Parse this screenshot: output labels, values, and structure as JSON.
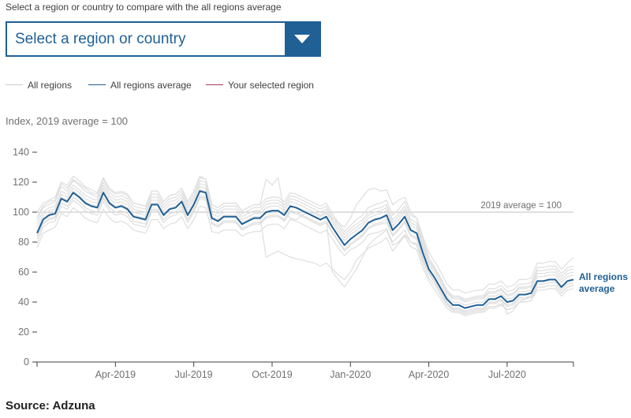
{
  "controls": {
    "prompt": "Select a region or country to compare with the all regions average",
    "select_placeholder": "Select a region or country"
  },
  "legend": {
    "items": [
      {
        "label": "All regions",
        "color": "#cccccc"
      },
      {
        "label": "All regions average",
        "color": "#206095"
      },
      {
        "label": "Your selected region",
        "color": "#a8385d"
      }
    ]
  },
  "chart_data": {
    "type": "line",
    "y_note": "Index, 2019 average = 100",
    "ylim": [
      0,
      140
    ],
    "y_ticks": [
      0,
      20,
      40,
      60,
      80,
      100,
      120,
      140
    ],
    "x_ticks": [
      "Apr-2019",
      "Jul-2019",
      "Oct-2019",
      "Jan-2020",
      "Apr-2020",
      "Jul-2020"
    ],
    "x_tick_weeks": [
      13,
      26,
      39,
      52,
      65,
      78
    ],
    "reference_line": {
      "value": 100,
      "label": "2019 average = 100"
    },
    "average_label": [
      "All regions",
      "average"
    ],
    "colors": {
      "regions": "#dedede",
      "average": "#206095",
      "reference": "#cccccc",
      "axis": "#414042"
    },
    "average": [
      86,
      95,
      98,
      99,
      109,
      107,
      113,
      110,
      106,
      104,
      103,
      113,
      106,
      103,
      104,
      102,
      97,
      96,
      95,
      105,
      105,
      98,
      102,
      103,
      107,
      98,
      105,
      114,
      113,
      96,
      94,
      97,
      97,
      97,
      92,
      94,
      96,
      96,
      100,
      101,
      101,
      98,
      104,
      103,
      101,
      99,
      97,
      95,
      97,
      90,
      84,
      78,
      82,
      85,
      88,
      93,
      95,
      96,
      98,
      88,
      92,
      97,
      88,
      86,
      73,
      62,
      56,
      49,
      42,
      38,
      38,
      36,
      37,
      38,
      38,
      42,
      42,
      44,
      40,
      41,
      45,
      45,
      46,
      54,
      54,
      55,
      55,
      50,
      54,
      55
    ],
    "regions": [
      [
        79,
        90,
        93,
        94,
        104,
        102,
        108,
        105,
        101,
        99,
        98,
        107,
        101,
        98,
        99,
        97,
        92,
        91,
        90,
        100,
        100,
        93,
        97,
        98,
        102,
        93,
        100,
        109,
        108,
        92,
        90,
        93,
        93,
        93,
        88,
        90,
        92,
        92,
        96,
        97,
        97,
        94,
        100,
        99,
        97,
        95,
        93,
        91,
        93,
        86,
        80,
        74,
        78,
        81,
        84,
        89,
        91,
        92,
        93,
        84,
        88,
        93,
        84,
        82,
        69,
        59,
        53,
        46,
        39,
        35,
        35,
        33,
        34,
        35,
        35,
        39,
        39,
        41,
        37,
        38,
        42,
        42,
        43,
        50,
        50,
        51,
        51,
        46,
        50,
        51
      ],
      [
        93,
        100,
        103,
        104,
        114,
        112,
        118,
        115,
        111,
        109,
        108,
        118,
        111,
        108,
        109,
        107,
        102,
        101,
        100,
        110,
        110,
        103,
        107,
        108,
        112,
        103,
        110,
        119,
        118,
        101,
        99,
        102,
        102,
        102,
        97,
        99,
        101,
        101,
        105,
        106,
        106,
        103,
        109,
        108,
        106,
        104,
        102,
        100,
        102,
        95,
        89,
        83,
        87,
        90,
        93,
        98,
        100,
        101,
        103,
        93,
        97,
        102,
        93,
        91,
        78,
        67,
        61,
        54,
        46,
        42,
        42,
        40,
        41,
        42,
        42,
        46,
        46,
        48,
        44,
        45,
        49,
        49,
        50,
        59,
        59,
        60,
        60,
        55,
        59,
        60
      ],
      [
        100,
        106,
        108,
        110,
        120,
        118,
        124,
        121,
        117,
        115,
        113,
        123,
        116,
        113,
        114,
        112,
        106,
        105,
        104,
        114,
        114,
        107,
        111,
        112,
        116,
        107,
        114,
        123,
        122,
        105,
        103,
        106,
        106,
        106,
        101,
        103,
        105,
        105,
        109,
        110,
        110,
        107,
        113,
        112,
        110,
        108,
        106,
        104,
        106,
        99,
        93,
        87,
        91,
        95,
        98,
        103,
        105,
        106,
        108,
        98,
        102,
        107,
        98,
        96,
        82,
        70,
        63,
        56,
        48,
        44,
        44,
        42,
        43,
        44,
        44,
        49,
        49,
        51,
        47,
        48,
        52,
        52,
        53,
        63,
        63,
        64,
        64,
        59,
        63,
        64
      ],
      [
        76,
        86,
        88,
        90,
        99,
        97,
        103,
        100,
        96,
        94,
        93,
        102,
        96,
        93,
        94,
        92,
        88,
        87,
        86,
        95,
        95,
        89,
        92,
        93,
        97,
        89,
        95,
        104,
        103,
        87,
        86,
        88,
        88,
        88,
        84,
        86,
        87,
        87,
        91,
        92,
        92,
        89,
        95,
        94,
        92,
        90,
        88,
        86,
        88,
        82,
        76,
        71,
        75,
        77,
        80,
        85,
        86,
        87,
        89,
        80,
        84,
        88,
        80,
        78,
        66,
        56,
        51,
        44,
        38,
        34,
        34,
        32,
        33,
        34,
        34,
        37,
        37,
        39,
        35,
        36,
        40,
        40,
        41,
        48,
        48,
        49,
        49,
        44,
        48,
        49
      ],
      [
        90,
        98,
        101,
        102,
        112,
        110,
        116,
        113,
        109,
        107,
        106,
        116,
        109,
        106,
        107,
        105,
        100,
        99,
        98,
        108,
        108,
        101,
        105,
        106,
        110,
        101,
        108,
        117,
        116,
        99,
        97,
        100,
        100,
        100,
        95,
        97,
        99,
        99,
        103,
        104,
        104,
        101,
        107,
        106,
        104,
        102,
        100,
        98,
        100,
        93,
        87,
        81,
        85,
        88,
        91,
        96,
        98,
        99,
        101,
        91,
        95,
        100,
        91,
        89,
        76,
        65,
        59,
        52,
        44,
        40,
        40,
        38,
        39,
        40,
        40,
        44,
        44,
        46,
        42,
        43,
        47,
        47,
        48,
        57,
        57,
        58,
        58,
        53,
        57,
        58
      ],
      [
        84,
        93,
        96,
        97,
        106,
        104,
        110,
        107,
        103,
        101,
        100,
        110,
        103,
        100,
        101,
        99,
        94,
        93,
        92,
        102,
        102,
        95,
        99,
        100,
        104,
        95,
        102,
        111,
        110,
        93,
        91,
        94,
        94,
        94,
        89,
        91,
        93,
        93,
        97,
        98,
        98,
        95,
        101,
        100,
        98,
        96,
        94,
        92,
        94,
        87,
        81,
        75,
        79,
        82,
        85,
        90,
        92,
        93,
        95,
        85,
        89,
        94,
        85,
        83,
        70,
        60,
        54,
        47,
        40,
        36,
        36,
        34,
        35,
        36,
        36,
        40,
        40,
        42,
        38,
        39,
        43,
        43,
        44,
        52,
        52,
        53,
        53,
        48,
        52,
        53
      ],
      [
        95,
        103,
        105,
        107,
        117,
        114,
        121,
        118,
        114,
        112,
        110,
        120,
        113,
        110,
        111,
        109,
        104,
        103,
        102,
        112,
        112,
        105,
        109,
        110,
        114,
        105,
        112,
        121,
        120,
        103,
        101,
        104,
        104,
        104,
        99,
        101,
        103,
        103,
        107,
        108,
        108,
        105,
        111,
        110,
        108,
        106,
        104,
        102,
        104,
        97,
        91,
        85,
        89,
        92,
        95,
        100,
        102,
        103,
        105,
        95,
        99,
        104,
        95,
        93,
        80,
        68,
        62,
        55,
        47,
        43,
        43,
        41,
        42,
        43,
        43,
        47,
        47,
        49,
        45,
        46,
        50,
        50,
        51,
        61,
        61,
        62,
        62,
        57,
        61,
        62
      ],
      [
        82,
        92,
        95,
        96,
        106,
        104,
        110,
        107,
        103,
        101,
        100,
        109,
        103,
        100,
        101,
        99,
        94,
        93,
        92,
        101,
        101,
        95,
        99,
        100,
        104,
        95,
        101,
        110,
        109,
        93,
        91,
        94,
        94,
        94,
        89,
        91,
        93,
        93,
        97,
        98,
        98,
        95,
        101,
        100,
        98,
        96,
        94,
        92,
        94,
        60,
        55,
        50,
        56,
        62,
        70,
        78,
        82,
        85,
        88,
        78,
        80,
        85,
        80,
        79,
        68,
        59,
        53,
        46,
        40,
        36,
        36,
        34,
        35,
        36,
        36,
        40,
        40,
        42,
        32,
        34,
        40,
        42,
        44,
        52,
        52,
        53,
        53,
        48,
        52,
        53
      ],
      [
        97,
        104,
        107,
        108,
        119,
        116,
        122,
        119,
        116,
        113,
        112,
        122,
        115,
        112,
        113,
        111,
        106,
        105,
        104,
        114,
        114,
        107,
        111,
        112,
        116,
        107,
        114,
        124,
        122,
        105,
        103,
        106,
        106,
        106,
        101,
        103,
        105,
        105,
        122,
        118,
        123,
        100,
        96,
        95,
        98,
        100,
        99,
        97,
        99,
        96,
        93,
        90,
        96,
        105,
        110,
        115,
        116,
        114,
        115,
        105,
        108,
        110,
        100,
        96,
        84,
        73,
        67,
        60,
        52,
        48,
        48,
        46,
        47,
        48,
        48,
        52,
        52,
        54,
        50,
        51,
        55,
        55,
        56,
        66,
        66,
        67,
        67,
        62,
        66,
        70
      ],
      [
        87,
        96,
        99,
        100,
        110,
        108,
        114,
        111,
        107,
        105,
        104,
        114,
        107,
        104,
        105,
        103,
        98,
        97,
        96,
        106,
        106,
        99,
        103,
        104,
        108,
        99,
        106,
        115,
        114,
        97,
        95,
        98,
        98,
        98,
        93,
        95,
        97,
        97,
        70,
        72,
        74,
        72,
        70,
        69,
        68,
        67,
        66,
        64,
        66,
        62,
        58,
        55,
        60,
        68,
        72,
        76,
        78,
        80,
        83,
        74,
        79,
        84,
        77,
        75,
        63,
        54,
        48,
        42,
        36,
        33,
        33,
        31,
        32,
        33,
        33,
        36,
        36,
        38,
        35,
        36,
        40,
        40,
        41,
        50,
        50,
        51,
        51,
        46,
        50,
        51
      ]
    ],
    "source": "Source: Adzuna"
  }
}
